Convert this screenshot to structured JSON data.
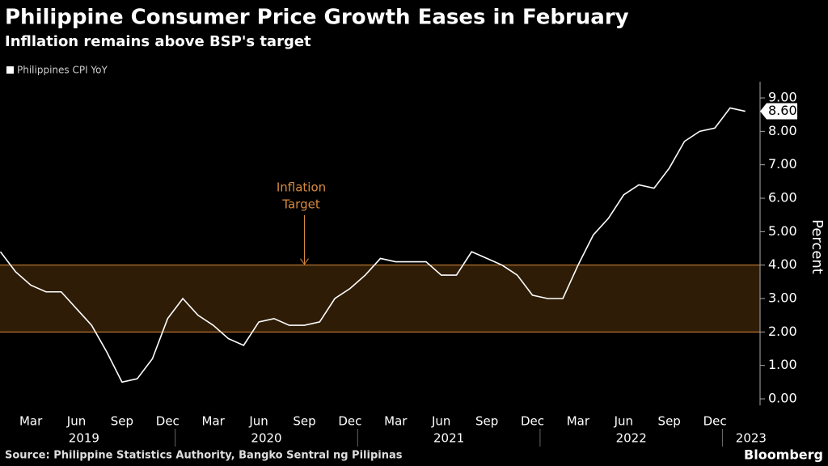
{
  "chart_data": {
    "type": "line",
    "title": "Philippine Consumer Price Growth Eases in February",
    "subtitle": "Infllation remains above BSP's target",
    "y_axis_label": "Percent",
    "source": "Source: Philippine Statistics Authority, Bangko Sentral ng Pilipinas",
    "brand": "Bloomberg",
    "categories": [
      null,
      null,
      "Mar",
      null,
      null,
      "Jun",
      null,
      null,
      "Sep",
      null,
      null,
      "Dec",
      null,
      null,
      "Mar",
      null,
      null,
      "Jun",
      null,
      null,
      "Sep",
      null,
      null,
      "Dec",
      null,
      null,
      "Mar",
      null,
      null,
      "Jun",
      null,
      null,
      "Sep",
      null,
      null,
      "Dec",
      null,
      null,
      "Mar",
      null,
      null,
      "Jun",
      null,
      null,
      "Sep",
      null,
      null,
      "Dec",
      null,
      null
    ],
    "years": [
      "2019",
      "2020",
      "2021",
      "2022",
      "2023"
    ],
    "series": [
      {
        "name": "Philippines CPI YoY",
        "color": "#ffffff",
        "values": [
          4.4,
          3.8,
          3.4,
          3.2,
          3.2,
          2.7,
          2.2,
          1.4,
          0.5,
          0.6,
          1.2,
          2.4,
          3.0,
          2.5,
          2.2,
          1.8,
          1.6,
          2.3,
          2.4,
          2.2,
          2.2,
          2.3,
          3.0,
          3.3,
          3.7,
          4.2,
          4.1,
          4.1,
          4.1,
          3.7,
          3.7,
          4.4,
          4.2,
          4.0,
          3.7,
          3.1,
          3.0,
          3.0,
          4.0,
          4.9,
          5.4,
          6.1,
          6.4,
          6.3,
          6.9,
          7.7,
          8.0,
          8.1,
          8.7,
          8.6
        ],
        "value_labels": [
          null,
          null,
          null,
          null,
          null,
          null,
          null,
          null,
          null,
          null,
          null,
          null,
          null,
          null,
          null,
          null,
          null,
          null,
          null,
          null,
          null,
          null,
          null,
          null,
          null,
          null,
          null,
          null,
          null,
          null,
          null,
          null,
          null,
          null,
          null,
          null,
          null,
          null,
          null,
          null,
          null,
          null,
          null,
          null,
          null,
          null,
          null,
          null,
          null,
          "8.60"
        ]
      }
    ],
    "target_band": {
      "range": [
        2,
        4
      ],
      "color": "#d98a3d",
      "fill": "#2e1c06",
      "label": [
        "Inflation",
        "Target"
      ]
    },
    "ylim": [
      0,
      9.5
    ],
    "yticks": [
      {
        "value": 0,
        "label": "0.00"
      },
      {
        "value": 1,
        "label": "1.00"
      },
      {
        "value": 2,
        "label": "2.00"
      },
      {
        "value": 3,
        "label": "3.00"
      },
      {
        "value": 4,
        "label": "4.00"
      },
      {
        "value": 5,
        "label": "5.00"
      },
      {
        "value": 6,
        "label": "6.00"
      },
      {
        "value": 7,
        "label": "7.00"
      },
      {
        "value": 8,
        "label": "8.00"
      },
      {
        "value": 9,
        "label": "9.00"
      }
    ]
  }
}
